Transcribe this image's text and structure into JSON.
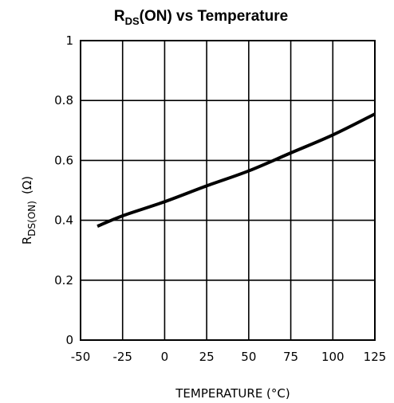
{
  "chart_data": {
    "type": "line",
    "title": {
      "main": "R",
      "sub": "DS",
      "rest": "(ON) vs Temperature"
    },
    "xlabel": "TEMPERATURE (°C)",
    "ylabel": {
      "main": "R",
      "sub": "DS(ON)",
      "rest": "(Ω)"
    },
    "xlim": [
      -50,
      125
    ],
    "ylim": [
      0,
      1
    ],
    "xticks": [
      -50,
      -25,
      0,
      25,
      50,
      75,
      100,
      125
    ],
    "yticks": [
      0,
      0.2,
      0.4,
      0.6,
      0.8,
      1
    ],
    "ytick_labels": [
      "0",
      "0.2",
      "0.4",
      "0.6",
      "0.8",
      "1"
    ],
    "grid": true,
    "series": [
      {
        "x": [
          -40,
          -25,
          0,
          25,
          50,
          75,
          100,
          125
        ],
        "y": [
          0.38,
          0.415,
          0.462,
          0.515,
          0.565,
          0.625,
          0.685,
          0.755
        ]
      }
    ]
  }
}
